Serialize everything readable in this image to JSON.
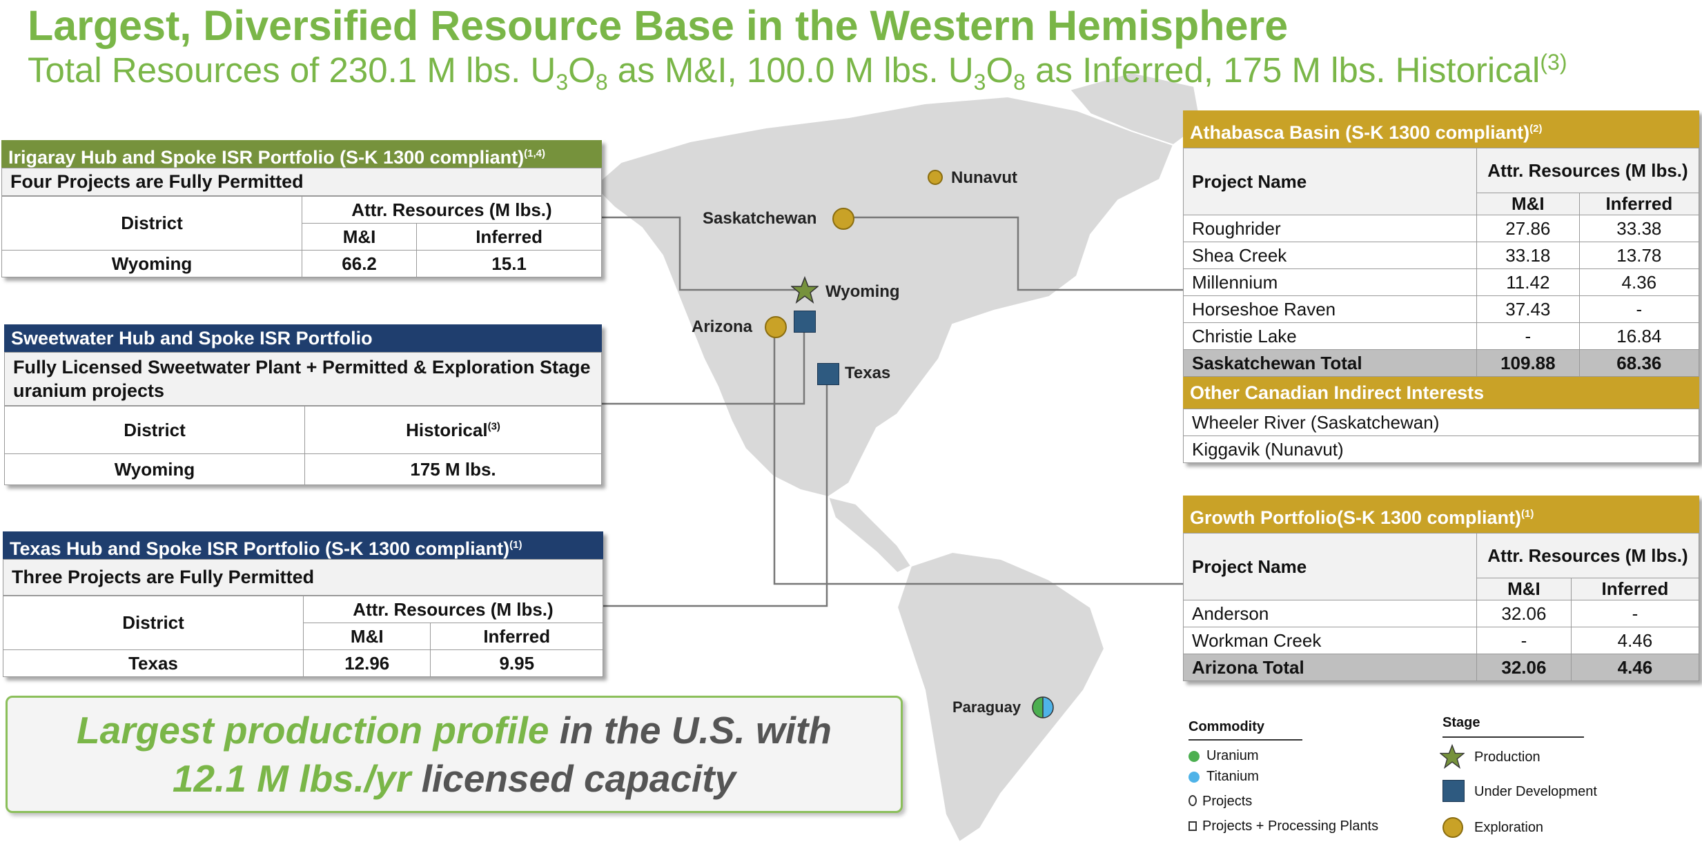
{
  "header": {
    "title": "Largest, Diversified Resource Base in the Western Hemisphere",
    "subtitle_a": "Total Resources of 230.1 M lbs. U",
    "subtitle_b": " as M&I, 100.0 M lbs. U",
    "subtitle_c": " as Inferred, 175 M lbs. Historical",
    "sub_u": "3",
    "sub_o": "O",
    "sub_8": "8",
    "sup_note": "(3)"
  },
  "irigaray": {
    "title": "Irigaray Hub and Spoke ISR Portfolio (S-K 1300 compliant)",
    "note": "(1,4)",
    "subtitle": "Four Projects are Fully Permitted",
    "col_district": "District",
    "col_attr": "Attr. Resources (M lbs.)",
    "col_mi": "M&I",
    "col_inf": "Inferred",
    "row": {
      "district": "Wyoming",
      "mi": "66.2",
      "inf": "15.1"
    }
  },
  "sweetwater": {
    "title": "Sweetwater Hub and Spoke ISR Portfolio",
    "subtitle": "Fully Licensed Sweetwater Plant + Permitted & Exploration Stage uranium projects",
    "col_district": "District",
    "col_hist": "Historical",
    "note": "(3)",
    "row": {
      "district": "Wyoming",
      "hist": "175 M lbs."
    }
  },
  "texas": {
    "title": "Texas Hub and Spoke ISR Portfolio (S-K 1300 compliant)",
    "note": "(1)",
    "subtitle": "Three Projects are Fully Permitted",
    "col_district": "District",
    "col_attr": "Attr. Resources (M lbs.)",
    "col_mi": "M&I",
    "col_inf": "Inferred",
    "row": {
      "district": "Texas",
      "mi": "12.96",
      "inf": "9.95"
    }
  },
  "athabasca": {
    "title": "Athabasca Basin (S-K 1300 compliant)",
    "note": "(2)",
    "col_project": "Project Name",
    "col_attr": "Attr. Resources (M lbs.)",
    "col_mi": "M&I",
    "col_inf": "Inferred",
    "rows": [
      {
        "name": "Roughrider",
        "mi": "27.86",
        "inf": "33.38"
      },
      {
        "name": "Shea Creek",
        "mi": "33.18",
        "inf": "13.78"
      },
      {
        "name": "Millennium",
        "mi": "11.42",
        "inf": "4.36"
      },
      {
        "name": "Horseshoe Raven",
        "mi": "37.43",
        "inf": "-"
      },
      {
        "name": "Christie Lake",
        "mi": "-",
        "inf": "16.84"
      }
    ],
    "total": {
      "name": "Saskatchewan Total",
      "mi": "109.88",
      "inf": "68.36"
    },
    "other_title": "Other Canadian Indirect Interests",
    "other": [
      "Wheeler River (Saskatchewan)",
      "Kiggavik (Nunavut)"
    ]
  },
  "growth": {
    "title": "Growth Portfolio(S-K 1300 compliant)",
    "note": "(1)",
    "col_project": "Project Name",
    "col_attr": "Attr. Resources (M lbs.)",
    "col_mi": "M&I",
    "col_inf": "Inferred",
    "rows": [
      {
        "name": "Anderson",
        "mi": "32.06",
        "inf": "-"
      },
      {
        "name": "Workman Creek",
        "mi": "-",
        "inf": "4.46"
      }
    ],
    "total": {
      "name": "Arizona Total",
      "mi": "32.06",
      "inf": "4.46"
    }
  },
  "callout": {
    "line1_hl": "Largest production profile",
    "line1_rest": " in the U.S. with",
    "line2_hl": "12.1 M lbs./yr",
    "line2_rest": " licensed capacity"
  },
  "map_labels": {
    "nunavut": "Nunavut",
    "saskatchewan": "Saskatchewan",
    "wyoming": "Wyoming",
    "arizona": "Arizona",
    "texas": "Texas",
    "paraguay": "Paraguay"
  },
  "legend": {
    "commodity_title": "Commodity",
    "uranium": "Uranium",
    "titanium": "Titanium",
    "projects": "Projects",
    "projects_plants": "Projects + Processing Plants",
    "stage_title": "Stage",
    "production": "Production",
    "under_development": "Under Development",
    "exploration": "Exploration"
  },
  "colors": {
    "green": "#7ab648",
    "navy": "#1f3e6e",
    "gold": "#c9a227",
    "olive": "#76923c",
    "map_land": "#d6d6d6"
  }
}
